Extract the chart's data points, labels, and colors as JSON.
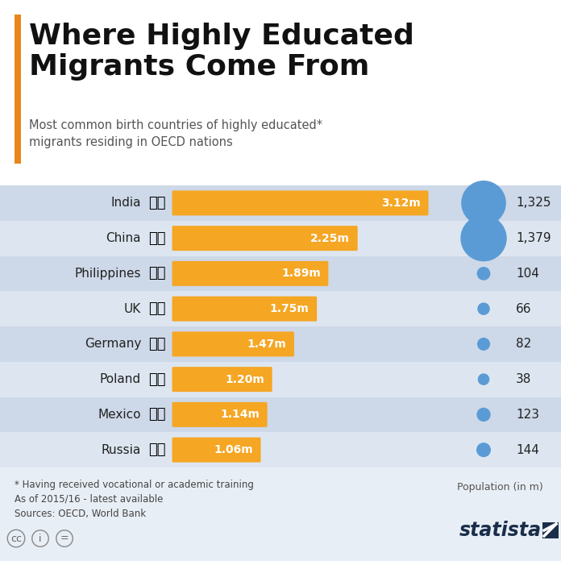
{
  "title": "Where Highly Educated\nMigrants Come From",
  "subtitle": "Most common birth countries of highly educated*\nmigrants residing in OECD nations",
  "countries": [
    "India",
    "China",
    "Philippines",
    "UK",
    "Germany",
    "Poland",
    "Mexico",
    "Russia"
  ],
  "migrants": [
    3.12,
    2.25,
    1.89,
    1.75,
    1.47,
    1.2,
    1.14,
    1.06
  ],
  "migrants_labels": [
    "3.12m",
    "2.25m",
    "1.89m",
    "1.75m",
    "1.47m",
    "1.20m",
    "1.14m",
    "1.06m"
  ],
  "population": [
    1325,
    1379,
    104,
    66,
    82,
    38,
    123,
    144
  ],
  "bar_color": "#F5A623",
  "bubble_color_large": "#5B9BD5",
  "bubble_color_small": "#6aaee0",
  "bg_color": "#E8EEF5",
  "row_bg_light": "#dde6f0",
  "row_bg_dark": "#cdd8e8",
  "title_color": "#111111",
  "subtitle_color": "#555555",
  "footnote1": "* Having received vocational or academic training",
  "footnote2": "As of 2015/16 - latest available",
  "footnote3": "Sources: OECD, World Bank",
  "pop_label": "Population (in m)",
  "orange_accent": "#E8861A",
  "white_bg": "#FFFFFF",
  "max_bar": 3.12
}
